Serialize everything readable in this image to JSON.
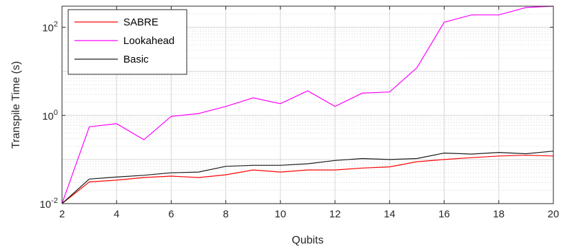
{
  "chart_data": {
    "type": "line",
    "title": "",
    "xlabel": "Qubits",
    "ylabel": "Transpile Time (s)",
    "xlim": [
      2,
      20
    ],
    "ylim": [
      0.01,
      300
    ],
    "y_scale": "log",
    "x_ticks": [
      2,
      4,
      6,
      8,
      10,
      12,
      14,
      16,
      18,
      20
    ],
    "y_ticks": [
      {
        "value": 0.01,
        "base": "10",
        "exp": "-2"
      },
      {
        "value": 1,
        "base": "10",
        "exp": "0"
      },
      {
        "value": 100,
        "base": "10",
        "exp": "2"
      }
    ],
    "grid": true,
    "legend_position": "top-left",
    "x": [
      2,
      3,
      4,
      5,
      6,
      7,
      8,
      9,
      10,
      11,
      12,
      13,
      14,
      15,
      16,
      17,
      18,
      19,
      20
    ],
    "series": [
      {
        "name": "SABRE",
        "color": "#ff0000",
        "values": [
          0.01,
          0.031,
          0.034,
          0.039,
          0.042,
          0.039,
          0.045,
          0.058,
          0.052,
          0.058,
          0.058,
          0.064,
          0.068,
          0.089,
          0.1,
          0.11,
          0.12,
          0.125,
          0.12
        ]
      },
      {
        "name": "Lookahead",
        "color": "#ff00ff",
        "values": [
          0.01,
          0.55,
          0.65,
          0.28,
          0.95,
          1.1,
          1.6,
          2.5,
          1.85,
          3.6,
          1.6,
          3.2,
          3.4,
          12,
          130,
          190,
          190,
          280,
          300
        ]
      },
      {
        "name": "Basic",
        "color": "#1a1a1a",
        "values": [
          0.01,
          0.036,
          0.04,
          0.044,
          0.05,
          0.052,
          0.07,
          0.074,
          0.074,
          0.08,
          0.095,
          0.105,
          0.1,
          0.105,
          0.14,
          0.133,
          0.145,
          0.135,
          0.155
        ]
      }
    ]
  }
}
